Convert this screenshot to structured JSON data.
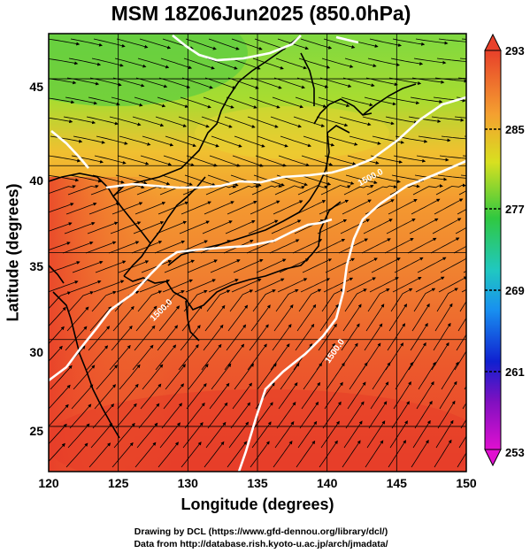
{
  "title": "MSM 18Z06Jun2025 (850.0hPa)",
  "x_axis": {
    "label": "Longitude (degrees)",
    "ticks": [
      "120",
      "125",
      "130",
      "135",
      "140",
      "145",
      "150"
    ],
    "range": [
      120,
      150
    ]
  },
  "y_axis": {
    "label": "Latitude  (degrees)",
    "ticks": [
      "25",
      "30",
      "35",
      "40",
      "45"
    ],
    "range": [
      22.4,
      47.6
    ]
  },
  "colorbar": {
    "ticks": [
      "293",
      "285",
      "277",
      "269",
      "261",
      "253"
    ],
    "range": [
      253,
      293
    ]
  },
  "contours": {
    "labels": [
      "1500.0",
      "1500.0",
      "1500.0"
    ]
  },
  "credits": {
    "line1": "Drawing by DCL (https://www.gfd-dennou.org/library/dcl/)",
    "line2": "Data from http://database.rish.kyoto-u.ac.jp/arch/jmadata/"
  },
  "colors": {
    "warm": "#e8402a",
    "mid": "#f0a030",
    "cool": "#9ad640",
    "green": "#3cc43c",
    "coast": "#000000",
    "contour": "#ffffff"
  }
}
